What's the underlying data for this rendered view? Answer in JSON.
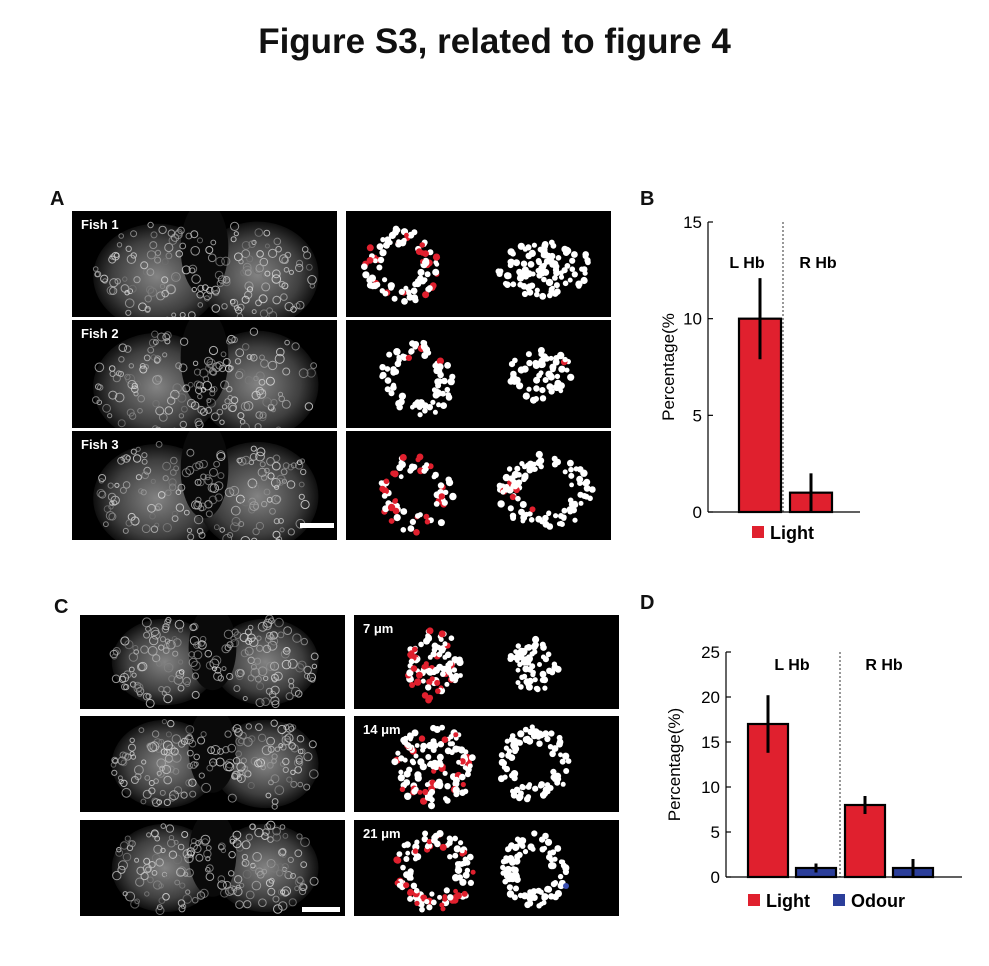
{
  "figure_title": "Figure S3, related to figure 4",
  "panels": {
    "A": {
      "label": "A",
      "rows": [
        {
          "raw_label": "Fish 1"
        },
        {
          "raw_label": "Fish 2"
        },
        {
          "raw_label": "Fish 3"
        }
      ],
      "has_scale_bar": true
    },
    "B": {
      "label": "B"
    },
    "C": {
      "label": "C",
      "rows": [
        {
          "depth_label": "7 μm"
        },
        {
          "depth_label": "14 μm"
        },
        {
          "depth_label": "21 μm"
        }
      ],
      "has_scale_bar": true
    },
    "D": {
      "label": "D"
    }
  },
  "colors": {
    "light": "#e0202e",
    "odour": "#2b3e9a",
    "error": "#000000",
    "cell_white": "#ffffff",
    "cell_red": "#e0202e",
    "cell_blue": "#3a4fb0"
  },
  "chart_data": [
    {
      "id": "B",
      "type": "bar",
      "categories": [
        "L Hb",
        "R Hb"
      ],
      "series": [
        {
          "name": "Light",
          "values": [
            10,
            1
          ],
          "errors": [
            2.1,
            1.0
          ]
        }
      ],
      "ylabel": "Percentage(%",
      "ylim": [
        0,
        15
      ],
      "yticks": [
        0,
        5,
        10,
        15
      ],
      "group_divider": true,
      "legend": "bottom"
    },
    {
      "id": "D",
      "type": "bar",
      "categories": [
        "L Hb",
        "R Hb"
      ],
      "series": [
        {
          "name": "Light",
          "values": [
            17,
            8
          ],
          "errors": [
            3.2,
            1.0
          ]
        },
        {
          "name": "Odour",
          "values": [
            1,
            1
          ],
          "errors": [
            0.5,
            1.0
          ]
        }
      ],
      "ylabel": "Percentage(%)",
      "ylim": [
        0,
        25
      ],
      "yticks": [
        0,
        5,
        10,
        15,
        20,
        25
      ],
      "group_divider": true,
      "legend": "bottom"
    }
  ]
}
